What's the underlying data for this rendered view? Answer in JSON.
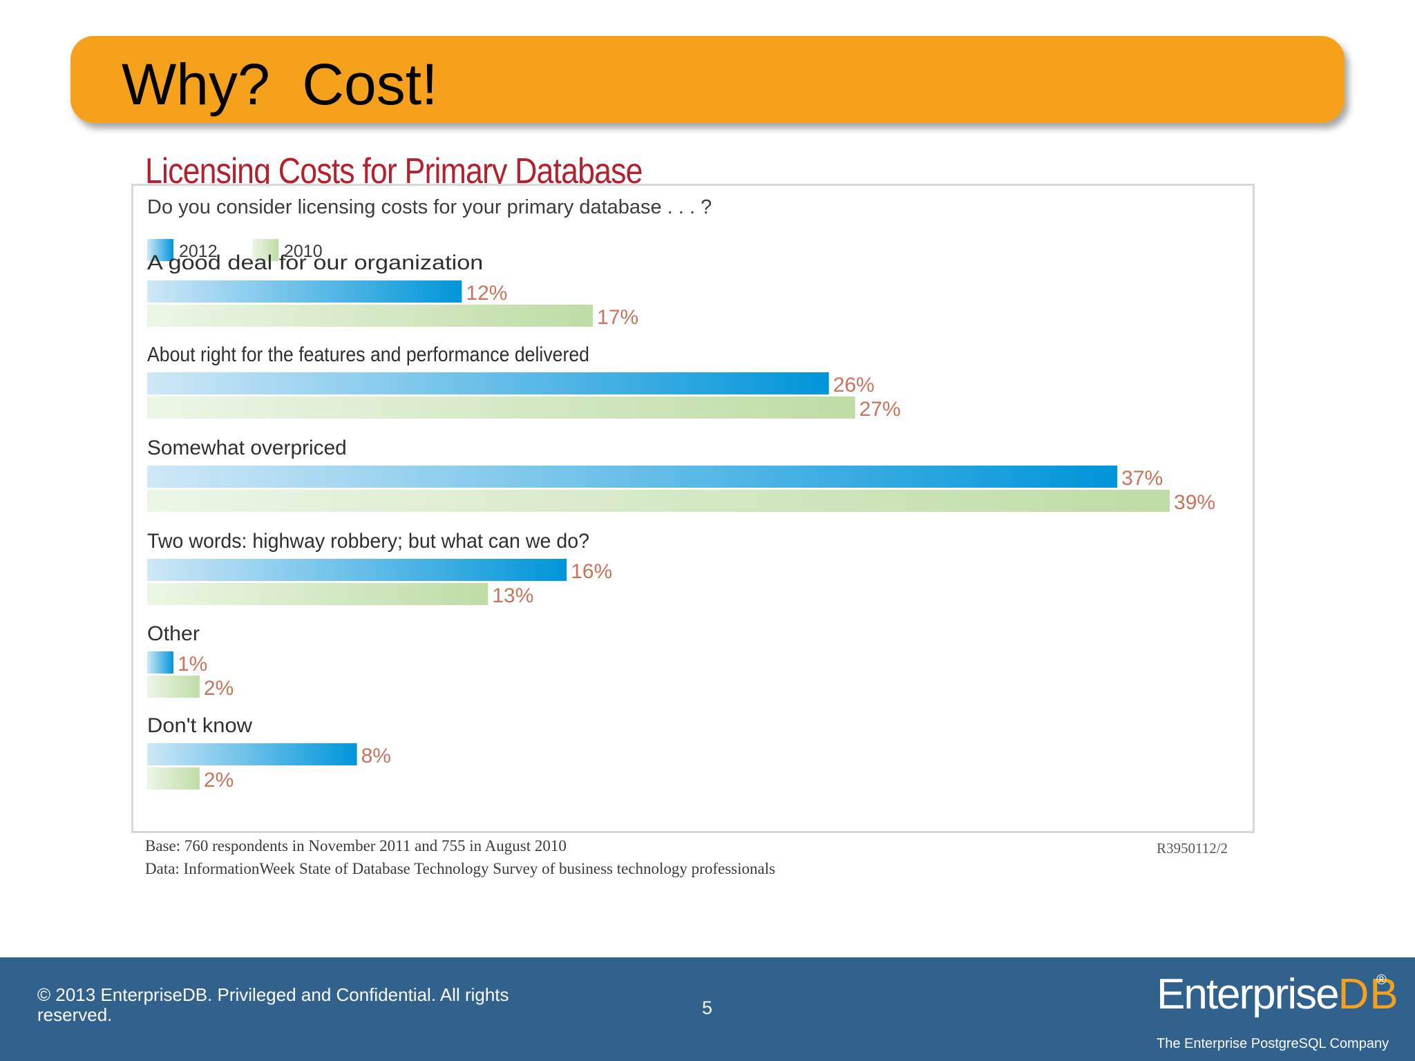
{
  "slide": {
    "title": "Why?  Cost!",
    "page_number": "5",
    "copyright": "© 2013 EnterpriseDB. Privileged and Confidential.  All rights reserved.",
    "logo": {
      "main": "Enterprise",
      "accent": "DB",
      "registered": "®",
      "tagline": "The Enterprise PostgreSQL Company"
    }
  },
  "colors": {
    "title_bar": "#f5a11c",
    "chart_title": "#b5202e",
    "value_label": "#c8735a",
    "series_2012": "#0095d9",
    "series_2010": "#bfdca6",
    "footer": "#31628e"
  },
  "chart_data": {
    "type": "bar",
    "orientation": "horizontal",
    "title": "Licensing Costs for Primary Database",
    "subtitle": "Do you consider licensing costs for your primary database . . . ?",
    "categories": [
      "A good deal for our organization",
      "About right for the features and performance delivered",
      "Somewhat overpriced",
      "Two words: highway robbery; but what can we do?",
      "Other",
      "Don't know"
    ],
    "series": [
      {
        "name": "2012",
        "values": [
          12,
          26,
          37,
          16,
          1,
          8
        ]
      },
      {
        "name": "2010",
        "values": [
          17,
          27,
          39,
          13,
          2,
          2
        ]
      }
    ],
    "value_suffix": "%",
    "legend_position": "top-left",
    "grid": false,
    "notes": [
      "Base: 760 respondents in November 2011 and 755 in August 2010",
      "Data: InformationWeek State of Database Technology Survey of business technology professionals"
    ],
    "source_code": "R3950112/2"
  }
}
